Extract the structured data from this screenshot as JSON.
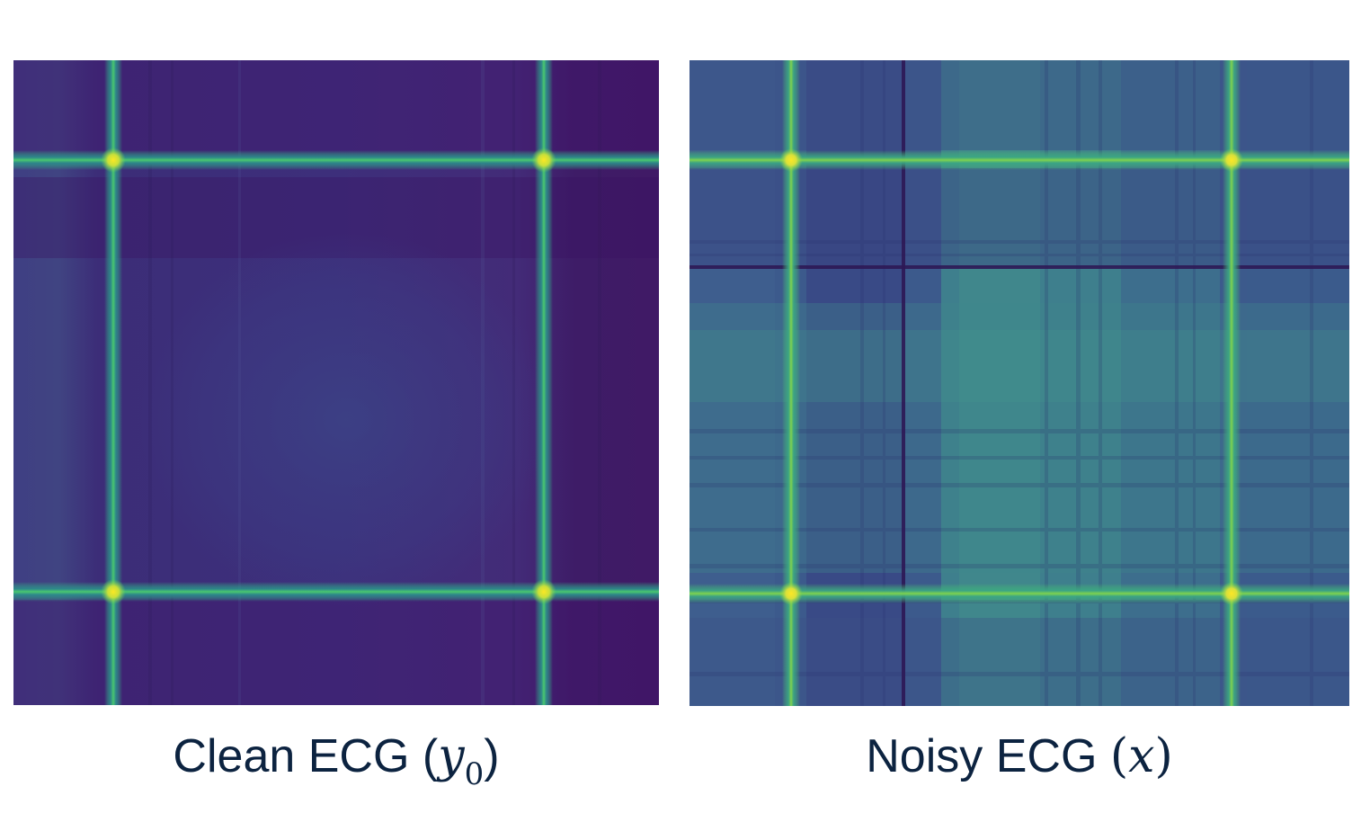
{
  "figure": {
    "panels": [
      {
        "id": "clean",
        "caption_text": "Clean ECG",
        "caption_symbol": "y",
        "caption_subscript": "0",
        "colormap": "viridis",
        "background_color": "#40156a",
        "peak_color": "#f2e432",
        "line_color": "#35b882",
        "peak_positions": [
          0.155,
          0.825
        ]
      },
      {
        "id": "noisy",
        "caption_text": "Noisy ECG",
        "caption_symbol": "x",
        "caption_subscript": "",
        "colormap": "viridis",
        "background_color": "#3a5b8c",
        "peak_color": "#f0e436",
        "line_color": "#48bf6f",
        "dark_line_color": "#2c1553",
        "peak_positions": [
          0.155,
          0.825
        ]
      }
    ]
  }
}
